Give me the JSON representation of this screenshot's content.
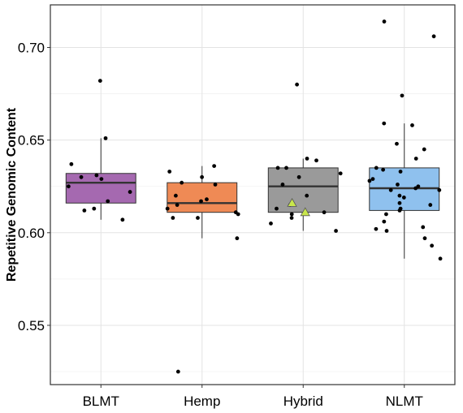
{
  "chart_data": {
    "type": "box",
    "title": "",
    "xlabel": "",
    "ylabel": "Repetitive Genomic Content",
    "ylim": [
      0.518,
      0.723
    ],
    "y_ticks": [
      0.55,
      0.6,
      0.65,
      0.7
    ],
    "y_tick_labels": [
      "0.55",
      "0.60",
      "0.65",
      "0.70"
    ],
    "grid": true,
    "legend": "none",
    "categories": [
      "BLMT",
      "Hemp",
      "Hybrid",
      "NLMT"
    ],
    "boxes": [
      {
        "category": "BLMT",
        "color": "#a569b0",
        "q1": 0.616,
        "median": 0.627,
        "q3": 0.632,
        "whisker_low": 0.607,
        "whisker_high": 0.651
      },
      {
        "category": "Hemp",
        "color": "#ef8a55",
        "q1": 0.611,
        "median": 0.616,
        "q3": 0.627,
        "whisker_low": 0.597,
        "whisker_high": 0.636
      },
      {
        "category": "Hybrid",
        "color": "#9a9a9a",
        "q1": 0.611,
        "median": 0.625,
        "q3": 0.635,
        "whisker_low": 0.601,
        "whisker_high": 0.64
      },
      {
        "category": "NLMT",
        "color": "#8fc1ee",
        "q1": 0.612,
        "median": 0.624,
        "q3": 0.635,
        "whisker_low": 0.586,
        "whisker_high": 0.659
      }
    ],
    "points": [
      {
        "category": "BLMT",
        "y": [
          0.682,
          0.651,
          0.637,
          0.63,
          0.631,
          0.629,
          0.625,
          0.622,
          0.617,
          0.613,
          0.612,
          0.607
        ]
      },
      {
        "category": "Hemp",
        "y": [
          0.636,
          0.633,
          0.63,
          0.627,
          0.626,
          0.62,
          0.618,
          0.617,
          0.615,
          0.613,
          0.611,
          0.61,
          0.608,
          0.608,
          0.597,
          0.525
        ]
      },
      {
        "category": "Hybrid",
        "y": [
          0.68,
          0.64,
          0.639,
          0.635,
          0.635,
          0.632,
          0.63,
          0.626,
          0.62,
          0.615,
          0.613,
          0.611,
          0.61,
          0.608,
          0.605,
          0.601
        ]
      },
      {
        "category": "NLMT",
        "y": [
          0.714,
          0.706,
          0.674,
          0.659,
          0.658,
          0.648,
          0.645,
          0.64,
          0.635,
          0.634,
          0.633,
          0.629,
          0.628,
          0.626,
          0.625,
          0.624,
          0.623,
          0.623,
          0.62,
          0.619,
          0.616,
          0.615,
          0.613,
          0.612,
          0.61,
          0.606,
          0.603,
          0.602,
          0.601,
          0.597,
          0.593,
          0.586
        ]
      }
    ],
    "highlight_points": [
      {
        "category": "Hybrid",
        "y": 0.616,
        "marker": "triangle",
        "color": "#c8e64b"
      },
      {
        "category": "Hybrid",
        "y": 0.611,
        "marker": "triangle",
        "color": "#c8e64b"
      }
    ]
  }
}
